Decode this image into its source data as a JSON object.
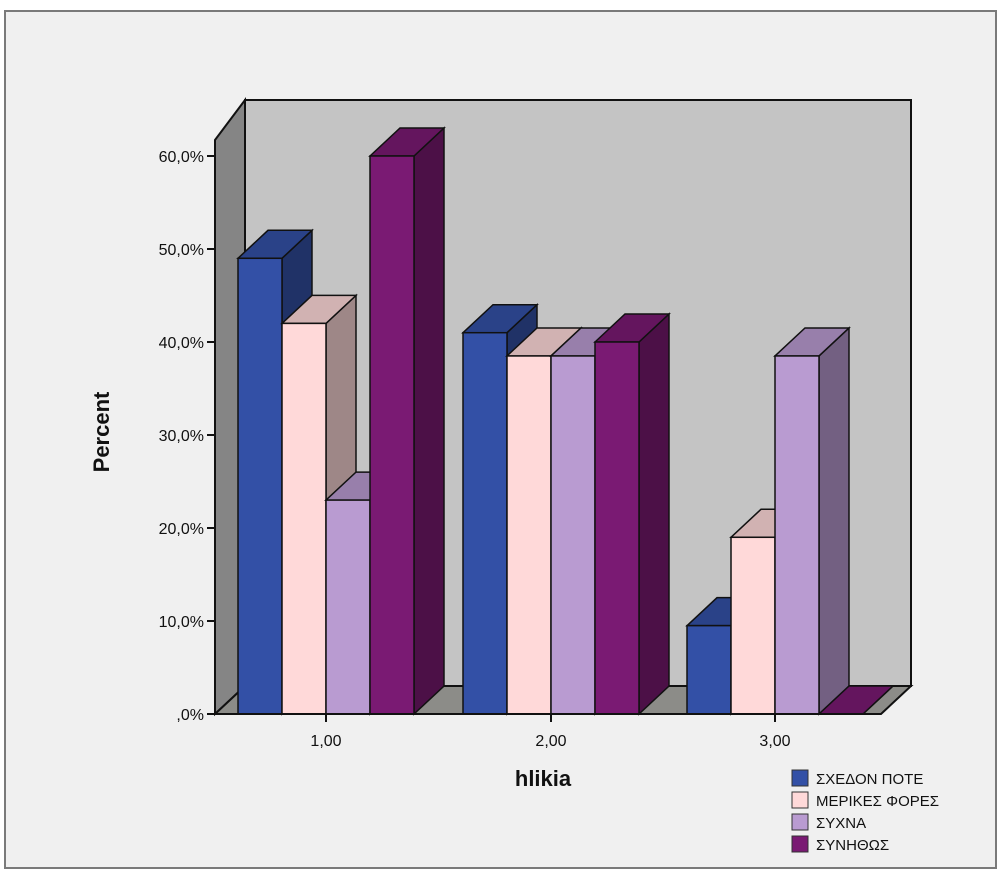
{
  "chart_data": {
    "type": "bar",
    "style": "3d-clustered",
    "xlabel": "hlikia",
    "ylabel": "Percent",
    "categories": [
      "1,00",
      "2,00",
      "3,00"
    ],
    "series": [
      {
        "name": "ΣΧΕΔΟΝ ΠΟΤΕ",
        "color": "#3350a6",
        "values": [
          49.0,
          41.0,
          9.5
        ]
      },
      {
        "name": "ΜΕΡΙΚΕΣ ΦΟΡΕΣ",
        "color": "#ffd9d9",
        "values": [
          42.0,
          38.5,
          19.0
        ]
      },
      {
        "name": "ΣΥΧΝΑ",
        "color": "#b99bd1",
        "values": [
          23.0,
          38.5,
          38.5
        ]
      },
      {
        "name": "ΣΥΝΗΘΩΣ",
        "color": "#7a1a73",
        "values": [
          60.0,
          40.0,
          0.0
        ]
      }
    ],
    "ylim": [
      0,
      60
    ],
    "yticks": [
      {
        "value": 0,
        "label": ",0%"
      },
      {
        "value": 10,
        "label": "10,0%"
      },
      {
        "value": 20,
        "label": "20,0%"
      },
      {
        "value": 30,
        "label": "30,0%"
      },
      {
        "value": 40,
        "label": "40,0%"
      },
      {
        "value": 50,
        "label": "50,0%"
      },
      {
        "value": 60,
        "label": "60,0%"
      }
    ],
    "grid": false,
    "legend_position": "bottom-right",
    "colors": {
      "plot_wall": "#c4c4c4",
      "plot_floor": "#8c8c88",
      "side_wall": "#858585",
      "frame_background": "#f0f0f0"
    }
  }
}
